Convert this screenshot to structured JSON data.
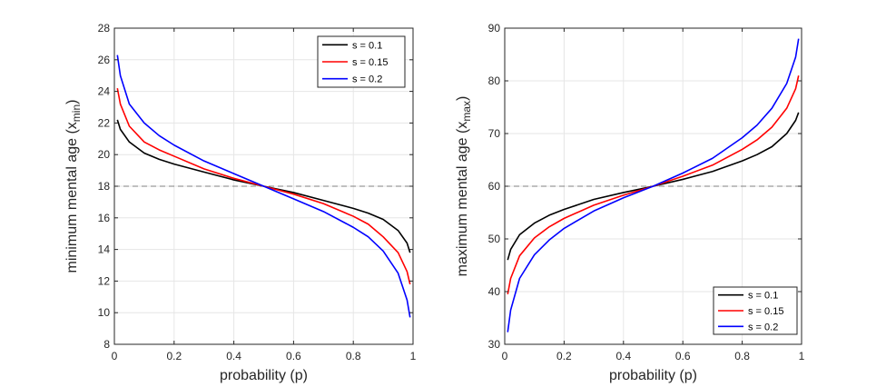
{
  "figure": {
    "background": "#ffffff",
    "grid_color": "#e6e6e6",
    "axis_color": "#262626",
    "reference_line_color": "#808080"
  },
  "chart_data": [
    {
      "type": "line",
      "xlabel": "probability (p)",
      "ylabel": {
        "base": "minimum mental age (x",
        "subscript": "min",
        "close": ")"
      },
      "xlim": [
        0,
        1
      ],
      "ylim": [
        8,
        28
      ],
      "xticks": [
        0,
        0.2,
        0.4,
        0.6,
        0.8,
        1
      ],
      "xtick_labels": [
        "0",
        "0.2",
        "0.4",
        "0.6",
        "0.8",
        "1"
      ],
      "yticks": [
        8,
        10,
        12,
        14,
        16,
        18,
        20,
        22,
        24,
        26,
        28
      ],
      "ytick_labels": [
        "8",
        "10",
        "12",
        "14",
        "16",
        "18",
        "20",
        "22",
        "24",
        "26",
        "28"
      ],
      "grid": true,
      "reference_line": {
        "y": 18,
        "style": "dashed"
      },
      "legend_position": "top-right",
      "series": [
        {
          "name": "s = 0.1",
          "color": "#000000",
          "x": [
            0.01,
            0.02,
            0.05,
            0.1,
            0.15,
            0.2,
            0.3,
            0.4,
            0.5,
            0.6,
            0.7,
            0.8,
            0.85,
            0.9,
            0.95,
            0.98,
            0.99
          ],
          "y": [
            22.2,
            21.6,
            20.8,
            20.1,
            19.7,
            19.4,
            18.9,
            18.4,
            18.0,
            17.6,
            17.1,
            16.6,
            16.3,
            15.9,
            15.2,
            14.4,
            13.8
          ]
        },
        {
          "name": "s = 0.15",
          "color": "#ff0000",
          "x": [
            0.01,
            0.02,
            0.05,
            0.1,
            0.15,
            0.2,
            0.3,
            0.4,
            0.5,
            0.6,
            0.7,
            0.8,
            0.85,
            0.9,
            0.95,
            0.98,
            0.99
          ],
          "y": [
            24.2,
            23.2,
            21.8,
            20.8,
            20.3,
            19.9,
            19.1,
            18.5,
            18.0,
            17.5,
            16.9,
            16.1,
            15.6,
            14.8,
            13.8,
            12.6,
            11.8
          ]
        },
        {
          "name": "s = 0.2",
          "color": "#0000ff",
          "x": [
            0.01,
            0.02,
            0.05,
            0.1,
            0.15,
            0.2,
            0.3,
            0.4,
            0.5,
            0.6,
            0.7,
            0.8,
            0.85,
            0.9,
            0.95,
            0.98,
            0.99
          ],
          "y": [
            26.3,
            25.0,
            23.2,
            22.0,
            21.2,
            20.6,
            19.6,
            18.8,
            18.0,
            17.2,
            16.4,
            15.4,
            14.8,
            13.9,
            12.5,
            10.8,
            9.7
          ]
        }
      ]
    },
    {
      "type": "line",
      "xlabel": "probability (p)",
      "ylabel": {
        "base": "maximum mental age (x",
        "subscript": "max",
        "close": ")"
      },
      "xlim": [
        0,
        1
      ],
      "ylim": [
        30,
        90
      ],
      "xticks": [
        0,
        0.2,
        0.4,
        0.6,
        0.8,
        1
      ],
      "xtick_labels": [
        "0",
        "0.2",
        "0.4",
        "0.6",
        "0.8",
        "1"
      ],
      "yticks": [
        30,
        40,
        50,
        60,
        70,
        80,
        90
      ],
      "ytick_labels": [
        "30",
        "40",
        "50",
        "60",
        "70",
        "80",
        "90"
      ],
      "grid": true,
      "reference_line": {
        "y": 60,
        "style": "dashed"
      },
      "legend_position": "bottom-right",
      "series": [
        {
          "name": "s = 0.1",
          "color": "#000000",
          "x": [
            0.01,
            0.02,
            0.05,
            0.1,
            0.15,
            0.2,
            0.3,
            0.4,
            0.5,
            0.6,
            0.7,
            0.8,
            0.85,
            0.9,
            0.95,
            0.98,
            0.99
          ],
          "y": [
            46.0,
            48.0,
            50.8,
            53.0,
            54.5,
            55.6,
            57.5,
            58.8,
            60.0,
            61.3,
            62.8,
            64.8,
            66.0,
            67.5,
            70.0,
            72.5,
            74.0
          ]
        },
        {
          "name": "s = 0.15",
          "color": "#ff0000",
          "x": [
            0.01,
            0.02,
            0.05,
            0.1,
            0.15,
            0.2,
            0.3,
            0.4,
            0.5,
            0.6,
            0.7,
            0.8,
            0.85,
            0.9,
            0.95,
            0.98,
            0.99
          ],
          "y": [
            39.5,
            42.5,
            46.8,
            50.2,
            52.3,
            53.9,
            56.4,
            58.3,
            60.0,
            61.9,
            64.0,
            67.0,
            68.8,
            71.2,
            74.8,
            78.5,
            81.0
          ]
        },
        {
          "name": "s = 0.2",
          "color": "#0000ff",
          "x": [
            0.01,
            0.02,
            0.05,
            0.1,
            0.15,
            0.2,
            0.3,
            0.4,
            0.5,
            0.6,
            0.7,
            0.8,
            0.85,
            0.9,
            0.95,
            0.98,
            0.99
          ],
          "y": [
            32.3,
            36.5,
            42.5,
            47.0,
            49.8,
            52.0,
            55.3,
            57.8,
            60.0,
            62.5,
            65.3,
            69.2,
            71.6,
            74.8,
            79.5,
            84.5,
            88.0
          ]
        }
      ]
    }
  ]
}
